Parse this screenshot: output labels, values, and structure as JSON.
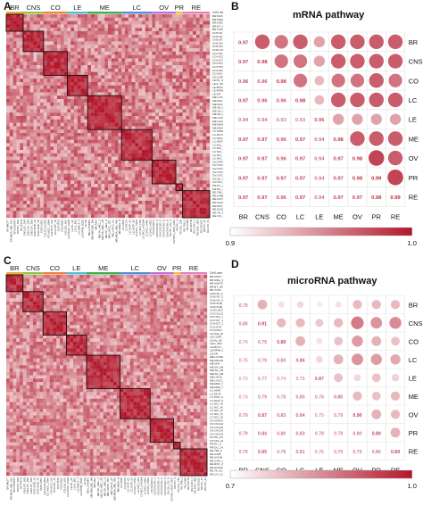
{
  "panels": {
    "A": {
      "label": "A",
      "groups": [
        {
          "name": "BR",
          "color": "#e8ab3b",
          "n": 5
        },
        {
          "name": "CNS",
          "color": "#8cc63f",
          "n": 6
        },
        {
          "name": "CO",
          "color": "#f07f3c",
          "n": 7
        },
        {
          "name": "LE",
          "color": "#4dbfd0",
          "n": 6
        },
        {
          "name": "ME",
          "color": "#3cae4c",
          "n": 10
        },
        {
          "name": "LC",
          "color": "#5b8bd6",
          "n": 9
        },
        {
          "name": "OV",
          "color": "#c06fd8",
          "n": 7
        },
        {
          "name": "PR",
          "color": "#f1c232",
          "n": 2
        },
        {
          "name": "RE",
          "color": "#e47fb8",
          "n": 8
        }
      ],
      "cell_lines_header": "Cell Lines",
      "row_labels": [
        "BR:MCF7",
        "BR:MDA_MB_231",
        "BR:HS578T",
        "BR:BT_549",
        "BR:T47D",
        "CNS:SF_268",
        "CNS:SF_295",
        "CNS:SF_539",
        "CNS:SNB_19",
        "CNS:SNB_75",
        "CNS:U251",
        "CO:COLO205",
        "CO:HCC_2998",
        "CO:HCT_116",
        "CO:HCT_15",
        "CO:HT29",
        "CO:KM12",
        "CO:SW_620",
        "LE:CCRF_CEM",
        "LE:HL_60",
        "LE:K_562",
        "LE:MOLT_4",
        "LE:RPMI_8226",
        "LE:SR",
        "ME:LOXIMVI",
        "ME:MALME_3M",
        "ME:M14",
        "ME:SK_MEL_2",
        "ME:SK_MEL_28",
        "ME:SK_MEL_5",
        "ME:UACC_257",
        "ME:UACC_62",
        "ME:MDA_MB_435",
        "ME:MDA_N",
        "LC:A549",
        "LC:EKVX",
        "LC:HOP_62",
        "LC:HOP_92",
        "LC:NCI_H226",
        "LC:NCI_H23",
        "LC:NCI_H322M",
        "LC:NCI_H460",
        "LC:NCI_H522",
        "OV:IGROV1",
        "OV:OVCAR_3",
        "OV:OVCAR_4",
        "OV:OVCAR_5",
        "OV:OVCAR_8",
        "OV:SK_OV_3",
        "OV:NCI_ADR_RES",
        "PR:PC_3",
        "PR:DU_145",
        "RE:786_0",
        "RE:A498",
        "RE:ACHN",
        "RE:CAKI_1",
        "RE:RXF_393",
        "RE:SN12C",
        "RE:TK_10",
        "RE:UO_31"
      ]
    },
    "B": {
      "label": "B",
      "title": "mRNA pathway",
      "colorbar": {
        "min": "0.9",
        "max": "1.0"
      }
    },
    "C": {
      "label": "C",
      "groups": [
        {
          "name": "BR",
          "color": "#e8ab3b",
          "n": 5
        },
        {
          "name": "CNS",
          "color": "#8cc63f",
          "n": 6
        },
        {
          "name": "CO",
          "color": "#f07f3c",
          "n": 7
        },
        {
          "name": "LE",
          "color": "#4dbfd0",
          "n": 6
        },
        {
          "name": "ME",
          "color": "#3cae4c",
          "n": 10
        },
        {
          "name": "LC",
          "color": "#5b8bd6",
          "n": 9
        },
        {
          "name": "OV",
          "color": "#c06fd8",
          "n": 7
        },
        {
          "name": "PR",
          "color": "#f1c232",
          "n": 2
        },
        {
          "name": "RE",
          "color": "#e47fb8",
          "n": 8
        }
      ],
      "cell_lines_header": "Cell Lines",
      "row_labels": [
        "BR:MCF7",
        "BR:MDA_MB_231",
        "BR:HS578T",
        "BR:BT_549",
        "BR:T47D",
        "CNS:SF_268",
        "CNS:SF_295",
        "CNS:SF_539",
        "CNS:SNB_19",
        "CNS:SNB_75",
        "CNS:U251",
        "CO:COLO205",
        "CO:HCC_2998",
        "CO:HCT_116",
        "CO:HCT_15",
        "CO:HT29",
        "CO:KM12",
        "CO:SW_620",
        "LE:CCRF_CEM",
        "LE:HL_60",
        "LE:K_562",
        "LE:MOLT_4",
        "LE:RPMI_8226",
        "LE:SR",
        "ME:LOXIMVI",
        "ME:MALME_3M",
        "ME:M14",
        "ME:SK_MEL_2",
        "ME:SK_MEL_28",
        "ME:SK_MEL_5",
        "ME:UACC_257",
        "ME:UACC_62",
        "ME:MDA_MB_435",
        "ME:MDA_N",
        "LC:A549",
        "LC:EKVX",
        "LC:HOP_62",
        "LC:HOP_92",
        "LC:NCI_H226",
        "LC:NCI_H23",
        "LC:NCI_H322M",
        "LC:NCI_H460",
        "LC:NCI_H522",
        "OV:IGROV1",
        "OV:OVCAR_3",
        "OV:OVCAR_4",
        "OV:OVCAR_5",
        "OV:OVCAR_8",
        "OV:SK_OV_3",
        "OV:NCI_ADR_RES",
        "PR:PC_3",
        "PR:DU_145",
        "RE:786_0",
        "RE:A498",
        "RE:ACHN",
        "RE:CAKI_1",
        "RE:RXF_393",
        "RE:SN12C",
        "RE:TK_10",
        "RE:UO_31"
      ]
    },
    "D": {
      "label": "D",
      "title": "microRNA pathway",
      "colorbar": {
        "min": "0.7",
        "max": "1.0"
      }
    }
  },
  "chart_data": [
    {
      "type": "heatmap",
      "panel": "A",
      "title": "",
      "categories": [
        "BR",
        "CNS",
        "CO",
        "LE",
        "ME",
        "LC",
        "OV",
        "PR",
        "RE"
      ],
      "group_sizes": [
        5,
        6,
        7,
        6,
        10,
        9,
        7,
        2,
        8
      ],
      "value_range": [
        0.9,
        1.0
      ],
      "note_values": "60x60 cell-line correlation matrix; individual cell values not labeled"
    },
    {
      "type": "heatmap",
      "panel": "B",
      "title": "mRNA pathway",
      "categories": [
        "BR",
        "CNS",
        "CO",
        "LC",
        "LE",
        "ME",
        "OV",
        "PR",
        "RE"
      ],
      "value_range": [
        0.9,
        1.0
      ],
      "lower_triangle_values": [
        [
          0.97
        ],
        [
          0.97,
          0.98
        ],
        [
          0.96,
          0.96,
          0.98
        ],
        [
          0.97,
          0.96,
          0.96,
          0.98
        ],
        [
          0.94,
          0.94,
          0.93,
          0.93,
          0.96
        ],
        [
          0.97,
          0.97,
          0.96,
          0.97,
          0.94,
          0.98
        ],
        [
          0.97,
          0.97,
          0.96,
          0.97,
          0.94,
          0.97,
          0.98
        ],
        [
          0.97,
          0.97,
          0.97,
          0.97,
          0.94,
          0.97,
          0.98,
          0.99
        ],
        [
          0.97,
          0.97,
          0.96,
          0.97,
          0.94,
          0.97,
          0.97,
          0.98,
          0.99
        ]
      ],
      "upper_circle_values": [
        [
          0.97,
          0.96,
          0.97,
          0.94,
          0.97,
          0.97,
          0.97,
          0.97
        ],
        [
          0.96,
          0.96,
          0.94,
          0.97,
          0.97,
          0.97,
          0.97
        ],
        [
          0.96,
          0.93,
          0.96,
          0.96,
          0.97,
          0.96
        ],
        [
          0.93,
          0.97,
          0.97,
          0.97,
          0.97
        ],
        [
          0.94,
          0.94,
          0.94,
          0.94
        ],
        [
          0.97,
          0.97,
          0.97
        ],
        [
          0.98,
          0.97
        ],
        [
          0.98
        ]
      ],
      "xlabel_ticks": [
        "BR",
        "CNS",
        "CO",
        "LC",
        "LE",
        "ME",
        "OV",
        "PR",
        "RE"
      ]
    },
    {
      "type": "heatmap",
      "panel": "C",
      "title": "",
      "categories": [
        "BR",
        "CNS",
        "CO",
        "LE",
        "ME",
        "LC",
        "OV",
        "PR",
        "RE"
      ],
      "group_sizes": [
        5,
        6,
        7,
        6,
        10,
        9,
        7,
        2,
        8
      ],
      "value_range": [
        0.7,
        1.0
      ],
      "note_values": "60x60 cell-line correlation matrix; individual cell values not labeled"
    },
    {
      "type": "heatmap",
      "panel": "D",
      "title": "microRNA pathway",
      "categories": [
        "BR",
        "CNS",
        "CO",
        "LC",
        "LE",
        "ME",
        "OV",
        "PR",
        "RE"
      ],
      "value_range": [
        0.7,
        1.0
      ],
      "lower_triangle_values": [
        [
          0.79
        ],
        [
          0.8,
          0.91
        ],
        [
          0.74,
          0.79,
          0.89
        ],
        [
          0.75,
          0.79,
          0.8,
          0.86
        ],
        [
          0.73,
          0.77,
          0.74,
          0.75,
          0.87
        ],
        [
          0.74,
          0.79,
          0.78,
          0.8,
          0.78,
          0.85
        ],
        [
          0.79,
          0.87,
          0.83,
          0.84,
          0.75,
          0.79,
          0.9
        ],
        [
          0.79,
          0.84,
          0.8,
          0.83,
          0.78,
          0.78,
          0.8,
          0.89
        ],
        [
          0.79,
          0.85,
          0.78,
          0.81,
          0.76,
          0.79,
          0.79,
          0.8,
          0.89
        ]
      ],
      "upper_circle_values": [
        [
          0.8,
          0.74,
          0.75,
          0.73,
          0.74,
          0.79,
          0.79,
          0.79
        ],
        [
          0.79,
          0.79,
          0.77,
          0.79,
          0.87,
          0.84,
          0.85
        ],
        [
          0.8,
          0.74,
          0.78,
          0.83,
          0.8,
          0.78
        ],
        [
          0.75,
          0.8,
          0.84,
          0.83,
          0.81
        ],
        [
          0.78,
          0.75,
          0.78,
          0.76
        ],
        [
          0.79,
          0.78,
          0.79
        ],
        [
          0.8,
          0.79
        ],
        [
          0.8
        ]
      ],
      "xlabel_ticks": [
        "BR",
        "CNS",
        "CO",
        "LC",
        "LE",
        "ME",
        "OV",
        "PR",
        "RE"
      ]
    }
  ]
}
